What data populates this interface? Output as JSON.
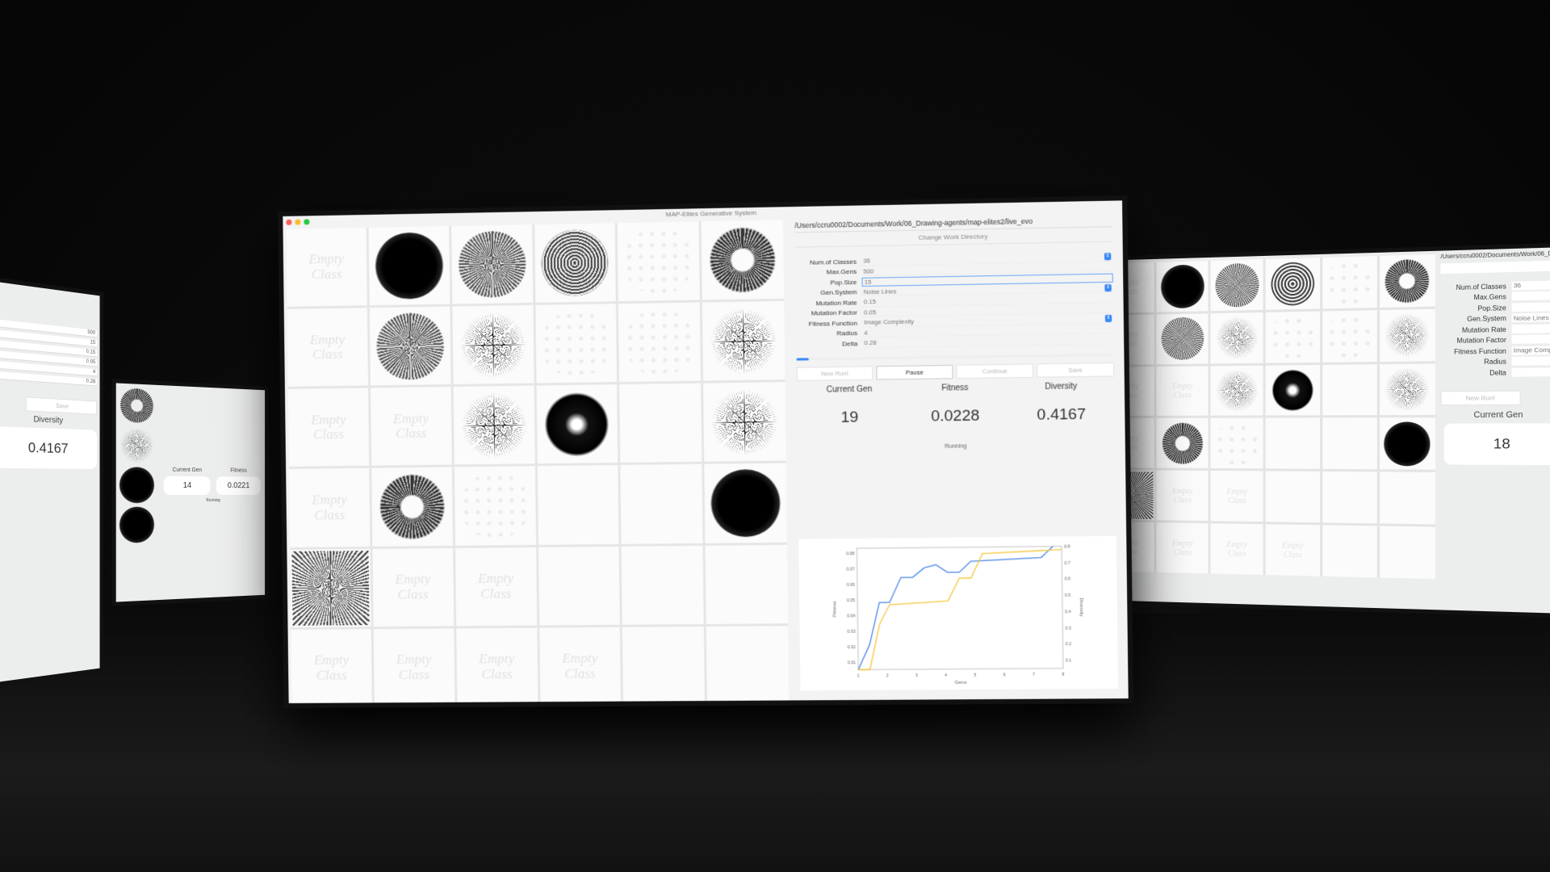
{
  "window": {
    "title": "MAP-Elites Generative System"
  },
  "grid": {
    "empty_label": "Empty Class",
    "cells": [
      "empty",
      "dark",
      "gray",
      "ring",
      "faint",
      "donut",
      "empty",
      "gray",
      "star",
      "faint",
      "faint",
      "star",
      "empty",
      "empty",
      "star",
      "dkdonut",
      "blank",
      "star",
      "empty",
      "donut",
      "faint",
      "blank",
      "blank",
      "dark",
      "noise",
      "empty",
      "empty",
      "blank",
      "blank",
      "blank",
      "empty",
      "empty",
      "empty",
      "empty",
      "blank",
      "blank"
    ]
  },
  "panel": {
    "path": "/Users/ccru0002/Documents/Work/06_Drawing-agents/map-elites2/live_evo",
    "change_dir": "Change Work Directory",
    "fields": [
      {
        "label": "Num.of Classes",
        "value": "36",
        "select": true
      },
      {
        "label": "Max.Gens",
        "value": "500"
      },
      {
        "label": "Pop.Size",
        "value": "15",
        "focused": true
      },
      {
        "label": "Gen.System",
        "value": "Noise Lines",
        "select": true
      },
      {
        "label": "Mutation Rate",
        "value": "0.15"
      },
      {
        "label": "Mutation Factor",
        "value": "0.05"
      },
      {
        "label": "Fitness Function",
        "value": "Image Complexity",
        "select": true
      },
      {
        "label": "Radius",
        "value": "4"
      },
      {
        "label": "Delta",
        "value": "0.28"
      }
    ],
    "progress": 0.04,
    "buttons": {
      "new_run": "New Run!",
      "pause": "Pause",
      "continue": "Continue",
      "save": "Save"
    },
    "stats": {
      "current_gen_label": "Current Gen",
      "current_gen": "19",
      "fitness_label": "Fitness",
      "fitness": "0.0228",
      "diversity_label": "Diversity",
      "diversity": "0.4167"
    },
    "status": "Running"
  },
  "chart_data": {
    "type": "line",
    "xlabel": "Gens",
    "ylabel": "Fitness",
    "y2label": "Diversity",
    "xlim": [
      1,
      8
    ],
    "ylim": [
      0.005,
      0.083
    ],
    "y2lim": [
      0.05,
      0.8
    ],
    "xticks": [
      1,
      2,
      3,
      4,
      5,
      6,
      7,
      8
    ],
    "yticks": [
      0.01,
      0.02,
      0.03,
      0.04,
      0.05,
      0.06,
      0.07,
      0.08
    ],
    "y2ticks": [
      0.1,
      0.2,
      0.3,
      0.4,
      0.5,
      0.6,
      0.7,
      0.8
    ],
    "grid": false,
    "series": [
      {
        "axis": "left",
        "color": "#4a86e8",
        "x": [
          1,
          1.4,
          1.75,
          2.1,
          2.5,
          2.9,
          3.3,
          3.7,
          4.1,
          4.5,
          4.9,
          7.3,
          7.7
        ],
        "y": [
          0.005,
          0.021,
          0.048,
          0.048,
          0.064,
          0.064,
          0.07,
          0.072,
          0.067,
          0.067,
          0.074,
          0.076,
          0.083
        ]
      },
      {
        "axis": "right",
        "color": "#f5c842",
        "x": [
          1,
          1.4,
          1.75,
          2.1,
          4.1,
          4.5,
          4.9,
          5.3,
          8
        ],
        "y": [
          0.05,
          0.05,
          0.33,
          0.45,
          0.47,
          0.61,
          0.61,
          0.76,
          0.78
        ]
      }
    ]
  },
  "left_screen": {
    "values": [
      "500",
      "15",
      "0.15",
      "0.05",
      "4",
      "0.28"
    ],
    "save": "Save",
    "diversity_label": "Diversity",
    "diversity": "0.4167"
  },
  "left_small_screen": {
    "current_gen_label": "Current Gen",
    "current_gen": "14",
    "fitness_label": "Fitness",
    "fitness": "0.0221",
    "status": "Running"
  },
  "right_screen": {
    "path": "/Users/ccru0002/Documents/Work/06_Drawing-",
    "fields": [
      "Num.of Classes",
      "Max.Gens",
      "Pop.Size",
      "Gen.System",
      "Mutation Rate",
      "Mutation Factor",
      "Fitness Function",
      "Radius",
      "Delta"
    ],
    "num_classes": "36",
    "gen_system": "Noise Lines",
    "fitness_function": "Image Complexity",
    "new_run": "New Run!",
    "current_gen_label": "Current Gen",
    "current_gen": "18"
  }
}
